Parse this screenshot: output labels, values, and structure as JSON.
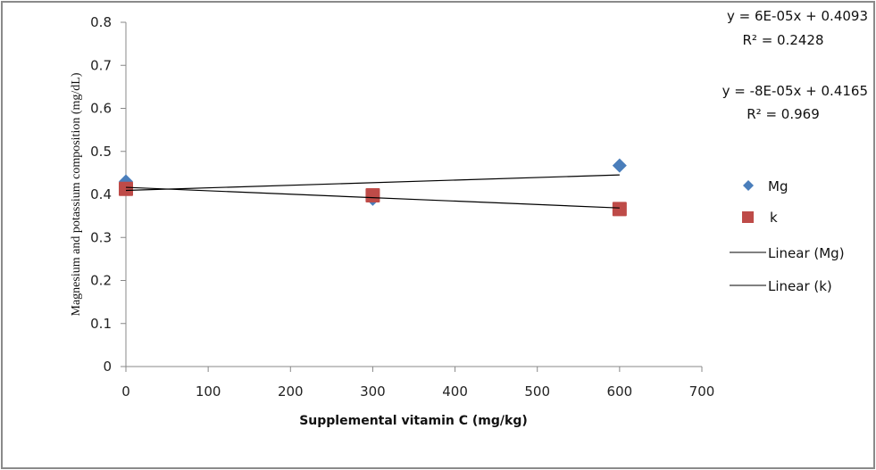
{
  "chart_data": {
    "type": "scatter",
    "title": "",
    "xlabel": "Supplemental vitamin C (mg/kg)",
    "ylabel": "Magnesium and potassium composition (mg/dL)",
    "xlim": [
      0,
      700
    ],
    "ylim": [
      0,
      0.8
    ],
    "x_ticks": [
      0,
      100,
      200,
      300,
      400,
      500,
      600,
      700
    ],
    "y_ticks": [
      0,
      0.1,
      0.2,
      0.3,
      0.4,
      0.5,
      0.6,
      0.7,
      0.8
    ],
    "x_tick_labels": [
      "0",
      "100",
      "200",
      "300",
      "400",
      "500",
      "600",
      "700"
    ],
    "y_tick_labels": [
      "0",
      "0.1",
      "0.2",
      "0.3",
      "0.4",
      "0.5",
      "0.6",
      "0.7",
      "0.8"
    ],
    "grid": false,
    "legend_position": "right",
    "series": [
      {
        "name": "Mg",
        "marker": "diamond",
        "color": "#4a7ebb",
        "x": [
          0,
          300,
          600
        ],
        "y": [
          0.43,
          0.39,
          0.467
        ]
      },
      {
        "name": "k",
        "marker": "square",
        "color": "#be4b48",
        "x": [
          0,
          300,
          600
        ],
        "y": [
          0.413,
          0.398,
          0.366
        ]
      }
    ],
    "trendlines": [
      {
        "name": "Linear (Mg)",
        "series": "Mg",
        "slope": 6e-05,
        "intercept": 0.4093,
        "x_range": [
          0,
          600
        ],
        "color": "#000000",
        "equation": "y = 6E-05x + 0.4093",
        "r2_label": "R² = 0.2428"
      },
      {
        "name": "Linear (k)",
        "series": "k",
        "slope": -8e-05,
        "intercept": 0.4165,
        "x_range": [
          0,
          600
        ],
        "color": "#000000",
        "equation": "y = -8E-05x + 0.4165",
        "r2_label": "R² = 0.969"
      }
    ],
    "legend": [
      "Mg",
      "k",
      "Linear (Mg)",
      "Linear (k)"
    ]
  }
}
